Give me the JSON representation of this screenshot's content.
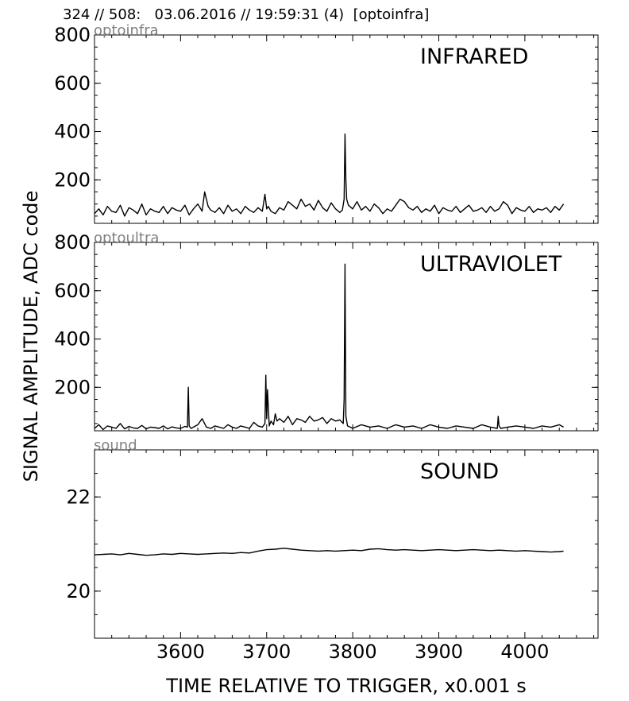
{
  "header": "324 // 508:   03.06.2016 // 19:59:31 (4)  [optoinfra]",
  "xlabel": "TIME RELATIVE TO TRIGGER,   x0.001 s",
  "ylabel": "SIGNAL AMPLITUDE,  ADC code",
  "colors": {
    "trace": "#000000",
    "channel_label": "#808080"
  },
  "chart_data": [
    {
      "type": "line",
      "title": "INFRARED",
      "channel": "optoinfra",
      "xlim": [
        3500,
        4085
      ],
      "ylim": [
        20,
        800
      ],
      "xticks": [
        3600,
        3700,
        3800,
        3900,
        4000
      ],
      "yticks": [
        200,
        400,
        600,
        800
      ],
      "x": [
        3500,
        3505,
        3510,
        3515,
        3520,
        3525,
        3530,
        3535,
        3540,
        3545,
        3550,
        3555,
        3560,
        3565,
        3570,
        3575,
        3580,
        3585,
        3590,
        3595,
        3600,
        3605,
        3610,
        3615,
        3620,
        3625,
        3628,
        3632,
        3635,
        3640,
        3645,
        3650,
        3655,
        3660,
        3665,
        3670,
        3675,
        3680,
        3685,
        3690,
        3695,
        3698,
        3700,
        3702,
        3705,
        3710,
        3715,
        3720,
        3725,
        3730,
        3735,
        3740,
        3745,
        3750,
        3755,
        3760,
        3765,
        3770,
        3775,
        3780,
        3785,
        3788,
        3790,
        3791,
        3792,
        3793,
        3795,
        3800,
        3805,
        3810,
        3815,
        3820,
        3825,
        3830,
        3835,
        3840,
        3845,
        3850,
        3855,
        3860,
        3865,
        3870,
        3875,
        3880,
        3885,
        3890,
        3895,
        3900,
        3905,
        3910,
        3915,
        3920,
        3925,
        3930,
        3935,
        3940,
        3945,
        3950,
        3955,
        3960,
        3965,
        3970,
        3975,
        3980,
        3985,
        3990,
        3995,
        4000,
        4005,
        4010,
        4015,
        4020,
        4025,
        4030,
        4035,
        4040,
        4045
      ],
      "values": [
        60,
        80,
        55,
        90,
        70,
        65,
        95,
        50,
        85,
        75,
        60,
        100,
        55,
        80,
        70,
        65,
        90,
        60,
        85,
        75,
        70,
        95,
        55,
        80,
        100,
        70,
        150,
        90,
        75,
        65,
        85,
        60,
        95,
        70,
        80,
        60,
        90,
        75,
        65,
        85,
        70,
        140,
        80,
        90,
        70,
        60,
        85,
        75,
        110,
        95,
        80,
        120,
        90,
        100,
        75,
        115,
        85,
        70,
        105,
        80,
        65,
        75,
        120,
        390,
        200,
        120,
        95,
        80,
        110,
        75,
        90,
        70,
        100,
        85,
        60,
        80,
        70,
        95,
        120,
        110,
        85,
        75,
        90,
        65,
        80,
        70,
        95,
        60,
        85,
        75,
        70,
        90,
        65,
        80,
        95,
        70,
        75,
        85,
        65,
        90,
        70,
        80,
        110,
        95,
        60,
        85,
        75,
        70,
        90,
        65,
        80,
        75,
        85,
        65,
        90,
        75,
        100
      ]
    },
    {
      "type": "line",
      "title": "ULTRAVIOLET",
      "channel": "optoultra",
      "xlim": [
        3500,
        4085
      ],
      "ylim": [
        20,
        800
      ],
      "xticks": [
        3600,
        3700,
        3800,
        3900,
        4000
      ],
      "yticks": [
        200,
        400,
        600,
        800
      ],
      "x": [
        3500,
        3505,
        3510,
        3515,
        3520,
        3525,
        3530,
        3535,
        3540,
        3545,
        3550,
        3555,
        3560,
        3565,
        3570,
        3575,
        3580,
        3585,
        3590,
        3595,
        3600,
        3605,
        3608,
        3609,
        3610,
        3612,
        3615,
        3620,
        3625,
        3630,
        3635,
        3640,
        3645,
        3650,
        3655,
        3660,
        3665,
        3670,
        3675,
        3680,
        3685,
        3690,
        3695,
        3698,
        3699,
        3700,
        3701,
        3703,
        3705,
        3708,
        3710,
        3712,
        3715,
        3720,
        3725,
        3730,
        3735,
        3740,
        3745,
        3750,
        3755,
        3760,
        3765,
        3770,
        3775,
        3780,
        3785,
        3789,
        3790,
        3791,
        3792,
        3794,
        3797,
        3800,
        3810,
        3820,
        3830,
        3840,
        3850,
        3860,
        3870,
        3880,
        3890,
        3900,
        3910,
        3920,
        3930,
        3940,
        3950,
        3960,
        3968,
        3969,
        3970,
        3972,
        3980,
        3990,
        4000,
        4010,
        4020,
        4030,
        4040,
        4045
      ],
      "values": [
        30,
        45,
        25,
        40,
        35,
        30,
        50,
        28,
        38,
        32,
        30,
        42,
        28,
        35,
        33,
        30,
        40,
        28,
        36,
        32,
        30,
        38,
        35,
        200,
        40,
        30,
        35,
        45,
        70,
        35,
        30,
        40,
        35,
        30,
        45,
        35,
        30,
        40,
        35,
        30,
        55,
        40,
        35,
        50,
        250,
        70,
        190,
        40,
        60,
        45,
        90,
        60,
        70,
        55,
        80,
        45,
        70,
        65,
        55,
        80,
        60,
        65,
        75,
        50,
        70,
        60,
        65,
        50,
        150,
        710,
        80,
        40,
        35,
        30,
        45,
        35,
        40,
        30,
        45,
        35,
        40,
        30,
        45,
        35,
        30,
        40,
        35,
        30,
        45,
        35,
        30,
        80,
        40,
        30,
        35,
        40,
        35,
        30,
        40,
        35,
        45,
        35
      ]
    },
    {
      "type": "line",
      "title": "SOUND",
      "channel": "sound",
      "xlim": [
        3500,
        4085
      ],
      "ylim": [
        19,
        23
      ],
      "xticks": [
        3600,
        3700,
        3800,
        3900,
        4000
      ],
      "yticks": [
        20,
        22
      ],
      "x": [
        3500,
        3510,
        3520,
        3530,
        3540,
        3550,
        3560,
        3570,
        3580,
        3590,
        3600,
        3610,
        3620,
        3630,
        3640,
        3650,
        3660,
        3670,
        3680,
        3690,
        3700,
        3710,
        3720,
        3730,
        3740,
        3750,
        3760,
        3770,
        3780,
        3790,
        3800,
        3810,
        3820,
        3830,
        3840,
        3850,
        3860,
        3870,
        3880,
        3890,
        3900,
        3910,
        3920,
        3930,
        3940,
        3950,
        3960,
        3970,
        3980,
        3990,
        4000,
        4010,
        4020,
        4030,
        4040,
        4045
      ],
      "values": [
        20.77,
        20.78,
        20.79,
        20.77,
        20.8,
        20.78,
        20.76,
        20.77,
        20.79,
        20.78,
        20.8,
        20.79,
        20.78,
        20.79,
        20.8,
        20.81,
        20.8,
        20.82,
        20.81,
        20.85,
        20.88,
        20.89,
        20.91,
        20.89,
        20.87,
        20.86,
        20.85,
        20.86,
        20.85,
        20.86,
        20.87,
        20.86,
        20.89,
        20.9,
        20.88,
        20.87,
        20.88,
        20.87,
        20.86,
        20.87,
        20.88,
        20.87,
        20.86,
        20.87,
        20.88,
        20.87,
        20.86,
        20.87,
        20.86,
        20.85,
        20.86,
        20.85,
        20.84,
        20.83,
        20.84,
        20.85
      ]
    }
  ]
}
